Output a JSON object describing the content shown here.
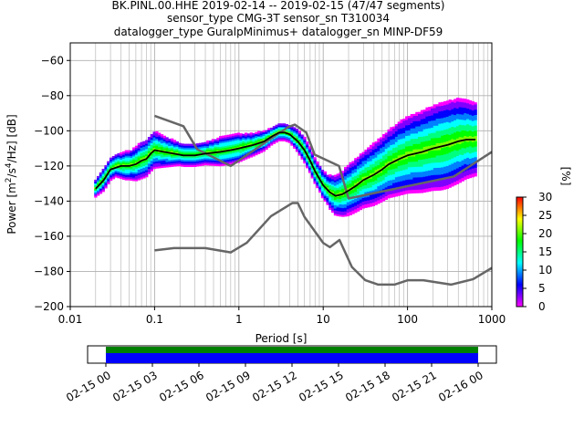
{
  "chart_data": {
    "type": "heatmap",
    "title_lines": [
      "BK.PINL.00.HHE   2019-02-14 -- 2019-02-15  (47/47 segments)",
      "sensor_type CMG-3T sensor_sn T310034",
      "datalogger_type GuralpMinimus+ datalogger_sn MINP-DF59"
    ],
    "xlabel": "Period [s]",
    "ylabel_parts": {
      "lead": "Power [m",
      "exp1": "2",
      "mid": "/s",
      "exp2": "4",
      "tail": "/Hz] [dB]"
    },
    "x_scale": "log",
    "xlim": [
      0.01,
      1000
    ],
    "ylim": [
      -200,
      -50
    ],
    "x_ticks": [
      {
        "value": 0.01,
        "label": "0.01"
      },
      {
        "value": 0.1,
        "label": "0.1"
      },
      {
        "value": 1,
        "label": "1"
      },
      {
        "value": 10,
        "label": "10"
      },
      {
        "value": 100,
        "label": "100"
      },
      {
        "value": 1000,
        "label": "1000"
      }
    ],
    "y_ticks": [
      {
        "value": -60,
        "label": "−60"
      },
      {
        "value": -80,
        "label": "−80"
      },
      {
        "value": -100,
        "label": "−100"
      },
      {
        "value": -120,
        "label": "−120"
      },
      {
        "value": -140,
        "label": "−140"
      },
      {
        "value": -160,
        "label": "−160"
      },
      {
        "value": -180,
        "label": "−180"
      },
      {
        "value": -200,
        "label": "−200"
      }
    ],
    "grid": true,
    "colorbar": {
      "label": "[%]",
      "range": [
        0,
        30
      ],
      "ticks": [
        {
          "value": 0,
          "label": "0"
        },
        {
          "value": 5,
          "label": "5"
        },
        {
          "value": 10,
          "label": "10"
        },
        {
          "value": 15,
          "label": "15"
        },
        {
          "value": 20,
          "label": "20"
        },
        {
          "value": 25,
          "label": "25"
        },
        {
          "value": 30,
          "label": "30"
        }
      ],
      "colors": [
        "#ff00ff",
        "#7f00ff",
        "#0000ff",
        "#007fff",
        "#00ffff",
        "#00ff7f",
        "#00ff00",
        "#7fff00",
        "#ffff00",
        "#ff7f00",
        "#ff0000"
      ]
    },
    "nhnm": {
      "name": "NHNM",
      "color": "#666666",
      "x": [
        0.1,
        0.22,
        0.32,
        0.8,
        3.8,
        4.6,
        6.3,
        7.9,
        15.4,
        20,
        354.8,
        1000
      ],
      "y": [
        -91.5,
        -97.4,
        -110.5,
        -120,
        -98,
        -96.5,
        -101,
        -113.5,
        -120,
        -138.5,
        -126,
        -112
      ]
    },
    "nlnm": {
      "name": "NLNM",
      "color": "#666666",
      "x": [
        0.1,
        0.17,
        0.4,
        0.8,
        1.24,
        2.4,
        4.3,
        5,
        6,
        10,
        12,
        15.6,
        21.9,
        31.6,
        45,
        70,
        101,
        154,
        328,
        600,
        1000
      ],
      "y": [
        -168,
        -166.7,
        -166.7,
        -169.2,
        -163.7,
        -148.6,
        -141.1,
        -141.1,
        -149,
        -163.8,
        -166.2,
        -162.1,
        -177.5,
        -185,
        -187.5,
        -187.5,
        -185,
        -185,
        -187.5,
        -184.4,
        -178
      ]
    },
    "mean_curve": {
      "name": "mean",
      "color": "#000000",
      "x": [
        0.02,
        0.025,
        0.03,
        0.04,
        0.05,
        0.06,
        0.07,
        0.08,
        0.09,
        0.1,
        0.13,
        0.17,
        0.22,
        0.3,
        0.4,
        0.6,
        0.8,
        1,
        1.5,
        2,
        2.5,
        3,
        3.5,
        4,
        5,
        6,
        7,
        8,
        10,
        12,
        14,
        17,
        20,
        25,
        30,
        40,
        50,
        60,
        80,
        100,
        150,
        200,
        300,
        400,
        500,
        640
      ],
      "y": [
        -133,
        -128,
        -122,
        -120,
        -120,
        -119,
        -117,
        -116,
        -113,
        -111,
        -112,
        -113,
        -114,
        -114,
        -113,
        -112,
        -111,
        -110,
        -108,
        -106,
        -103,
        -101,
        -101,
        -102,
        -106,
        -111,
        -117,
        -123,
        -131,
        -135,
        -137,
        -136,
        -134,
        -131,
        -128,
        -125,
        -122,
        -119,
        -116,
        -114,
        -112,
        -110,
        -108,
        -106,
        -105,
        -105
      ]
    },
    "psd_points": {
      "x": [
        0.02,
        0.025,
        0.03,
        0.035,
        0.04,
        0.045,
        0.05,
        0.055,
        0.06,
        0.07,
        0.08,
        0.09,
        0.1,
        0.115,
        0.13,
        0.15,
        0.17,
        0.2,
        0.22,
        0.26,
        0.3,
        0.35,
        0.4,
        0.5,
        0.6,
        0.7,
        0.8,
        1,
        1.2,
        1.5,
        2,
        2.5,
        3,
        3.5,
        4,
        4.5,
        5,
        6,
        7,
        8,
        9,
        10,
        11,
        12,
        14,
        17,
        20,
        25,
        30,
        35,
        40,
        50,
        60,
        70,
        80,
        100,
        120,
        150,
        200,
        250,
        300,
        400,
        500,
        640
      ],
      "center": [
        -133,
        -128,
        -122,
        -120,
        -120,
        -120,
        -120,
        -119.5,
        -119,
        -117,
        -116,
        -113,
        -111,
        -111.5,
        -112,
        -112.5,
        -113,
        -113.5,
        -114,
        -114,
        -114,
        -113.5,
        -113,
        -112.5,
        -112,
        -111.5,
        -111,
        -110,
        -109,
        -108,
        -106,
        -103,
        -101,
        -101,
        -102,
        -104,
        -106,
        -111,
        -117,
        -123,
        -127,
        -131,
        -133,
        -135,
        -137,
        -136,
        -134,
        -131,
        -128,
        -126.5,
        -125,
        -122,
        -119,
        -117.5,
        -116,
        -114,
        -113,
        -112,
        -110,
        -109,
        -108,
        -106,
        -105,
        -105
      ],
      "spread": [
        3,
        4,
        4,
        4,
        4.5,
        5,
        5,
        5.5,
        6,
        6.5,
        6.5,
        6.5,
        6.5,
        6,
        5.5,
        5,
        4.5,
        4,
        4,
        4,
        4,
        4,
        4,
        4.5,
        5,
        5,
        5,
        5,
        4.5,
        4,
        3.5,
        3,
        3,
        3,
        3,
        3.5,
        4,
        4.5,
        4.5,
        4.5,
        4.5,
        5,
        5,
        6,
        7,
        8,
        9,
        9.5,
        10,
        10.5,
        11,
        11.5,
        12,
        12.5,
        13,
        13.5,
        14,
        14.5,
        15,
        15.5,
        15.5,
        15,
        14,
        13
      ]
    },
    "data_availability": {
      "time_ticks": [
        "02-15 00",
        "02-15 03",
        "02-15 06",
        "02-15 09",
        "02-15 12",
        "02-15 15",
        "02-15 18",
        "02-15 21",
        "02-16 00"
      ],
      "green_color": "#008000",
      "blue_color": "#0000ff"
    }
  }
}
